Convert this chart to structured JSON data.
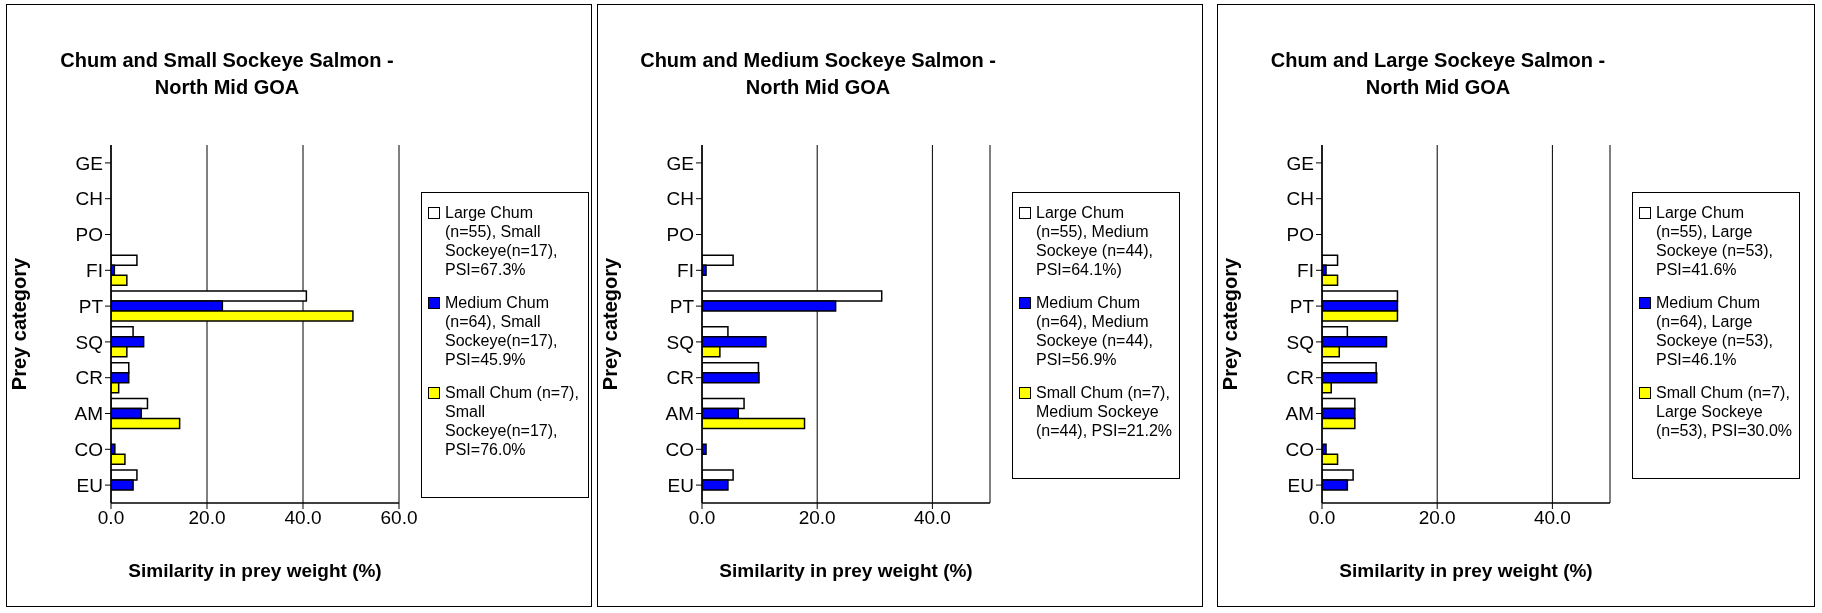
{
  "chart_data": [
    {
      "type": "bar",
      "orientation": "horizontal",
      "title": "Chum and Small Sockeye Salmon - North Mid GOA",
      "xlabel": "Similarity in prey weight (%)",
      "ylabel": "Prey category",
      "categories": [
        "GE",
        "CH",
        "PO",
        "FI",
        "PT",
        "SQ",
        "CR",
        "AM",
        "CO",
        "EU"
      ],
      "xlim": [
        0,
        60
      ],
      "xticks": [
        {
          "value": 0,
          "label": "0.0"
        },
        {
          "value": 20,
          "label": "20.0"
        },
        {
          "value": 40,
          "label": "40.0"
        },
        {
          "value": 60,
          "label": "60.0"
        }
      ],
      "grid": "x",
      "legend": "right",
      "series": [
        {
          "name": "Large Chum (n=55), Small Sockeye(n=17), PSI=67.3%",
          "color": "#ffffff",
          "values": [
            0,
            0,
            0,
            5.4,
            40.7,
            4.6,
            3.7,
            7.6,
            0,
            5.4
          ]
        },
        {
          "name": "Medium Chum (n=64), Small Sockeye(n=17), PSI=45.9%",
          "color": "#0000ff",
          "values": [
            0,
            0,
            0,
            0.7,
            23.2,
            6.8,
            3.7,
            6.3,
            0.8,
            4.6
          ]
        },
        {
          "name": "Small Chum (n=7), Small Sockeye(n=17), PSI=76.0%",
          "color": "#ffff00",
          "values": [
            0,
            0,
            0,
            3.3,
            50.4,
            3.3,
            1.6,
            14.3,
            2.9,
            0
          ]
        }
      ]
    },
    {
      "type": "bar",
      "orientation": "horizontal",
      "title": "Chum and Medium Sockeye Salmon - North Mid GOA",
      "xlabel": "Similarity in prey weight (%)",
      "ylabel": "Prey category",
      "categories": [
        "GE",
        "CH",
        "PO",
        "FI",
        "PT",
        "SQ",
        "CR",
        "AM",
        "CO",
        "EU"
      ],
      "xlim": [
        0,
        50
      ],
      "xticks": [
        {
          "value": 0,
          "label": "0.0"
        },
        {
          "value": 20,
          "label": "20.0"
        },
        {
          "value": 40,
          "label": "40.0"
        }
      ],
      "grid": "x",
      "legend": "right",
      "series": [
        {
          "name": "Large Chum (n=55), Medium Sockeye (n=44), PSI=64.1%)",
          "color": "#ffffff",
          "values": [
            0,
            0,
            0,
            5.4,
            31.2,
            4.5,
            9.8,
            7.3,
            0,
            5.4
          ]
        },
        {
          "name": "Medium Chum (n=64), Medium Sockeye (n=44), PSI=56.9%",
          "color": "#0000ff",
          "values": [
            0,
            0,
            0,
            0.7,
            23.2,
            11.1,
            9.9,
            6.3,
            0.7,
            4.5
          ]
        },
        {
          "name": "Small Chum (n=7), Medium Sockeye (n=44), PSI=21.2%",
          "color": "#ffff00",
          "values": [
            0,
            0,
            0,
            0,
            0,
            3.1,
            0,
            17.8,
            0,
            0
          ]
        }
      ]
    },
    {
      "type": "bar",
      "orientation": "horizontal",
      "title": "Chum and Large Sockeye Salmon - North Mid GOA",
      "xlabel": "Similarity in prey weight (%)",
      "ylabel": "Prey category",
      "categories": [
        "GE",
        "CH",
        "PO",
        "FI",
        "PT",
        "SQ",
        "CR",
        "AM",
        "CO",
        "EU"
      ],
      "xlim": [
        0,
        50
      ],
      "xticks": [
        {
          "value": 0,
          "label": "0.0"
        },
        {
          "value": 20,
          "label": "20.0"
        },
        {
          "value": 40,
          "label": "40.0"
        }
      ],
      "grid": "x",
      "legend": "right",
      "series": [
        {
          "name": "Large Chum (n=55), Large Sockeye (n=53), PSI=41.6%",
          "color": "#ffffff",
          "values": [
            0,
            0,
            0,
            2.7,
            13.1,
            4.4,
            9.4,
            5.7,
            0,
            5.4
          ]
        },
        {
          "name": "Medium Chum (n=64), Large Sockeye (n=53), PSI=46.1%",
          "color": "#0000ff",
          "values": [
            0,
            0,
            0,
            0.7,
            13.1,
            11.2,
            9.5,
            5.7,
            0.7,
            4.4
          ]
        },
        {
          "name": "Small Chum (n=7), Large Sockeye (n=53), PSI=30.0%",
          "color": "#ffff00",
          "values": [
            0,
            0,
            0,
            2.7,
            13.1,
            3.0,
            1.6,
            5.7,
            2.7,
            0
          ]
        }
      ]
    }
  ]
}
